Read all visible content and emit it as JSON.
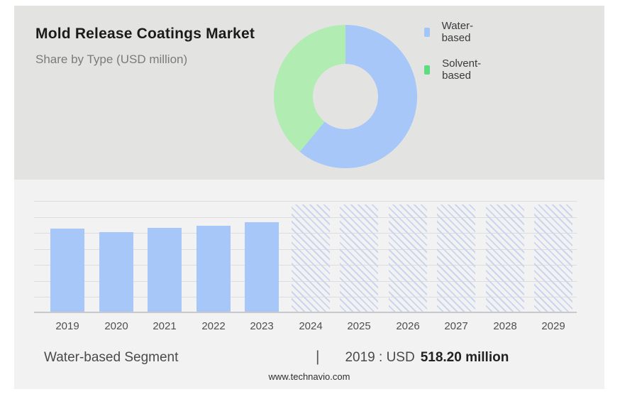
{
  "header": {
    "title": "Mold Release Coatings Market",
    "subtitle": "Share by Type (USD million)"
  },
  "legend": [
    {
      "label": "Water-based",
      "color": "#a3c6fa"
    },
    {
      "label": "Solvent-based",
      "color": "#5fdb82"
    }
  ],
  "chart_data": [
    {
      "type": "pie",
      "subtype": "donut",
      "title": "Share by Type (USD million)",
      "slices": [
        {
          "label": "Water-based",
          "share_pct": 61,
          "color": "#a6c7f7"
        },
        {
          "label": "Solvent-based",
          "share_pct": 39,
          "color": "#b1edb3"
        }
      ],
      "legend_position": "right",
      "note": "no numeric labels shown; shares estimated from arc angles"
    },
    {
      "type": "bar",
      "categories": [
        "2019",
        "2020",
        "2021",
        "2022",
        "2023",
        "2024",
        "2025",
        "2026",
        "2027",
        "2028",
        "2029"
      ],
      "series": [
        {
          "name": "Water-based segment size (USD million)",
          "values": [
            518.2,
            496,
            522,
            536,
            558,
            null,
            null,
            null,
            null,
            null,
            null
          ]
        }
      ],
      "forecast_categories": [
        "2024",
        "2025",
        "2026",
        "2027",
        "2028",
        "2029"
      ],
      "ylim": [
        0,
        700
      ],
      "gridline_step": 100,
      "grid": true,
      "bar_color": "#a6c7f7",
      "xlabel": "",
      "ylabel": "",
      "note": "only 2019 value labeled (USD 518.20 million); 2020-2023 estimated from bar heights; 2024-2029 rendered as full-height hatched forecast placeholders"
    }
  ],
  "footer": {
    "segment_label": "Water-based Segment",
    "separator": "|",
    "value_prefix": "2019 : USD",
    "value_bold": "518.20 million"
  },
  "watermark": "www.technavio.com"
}
